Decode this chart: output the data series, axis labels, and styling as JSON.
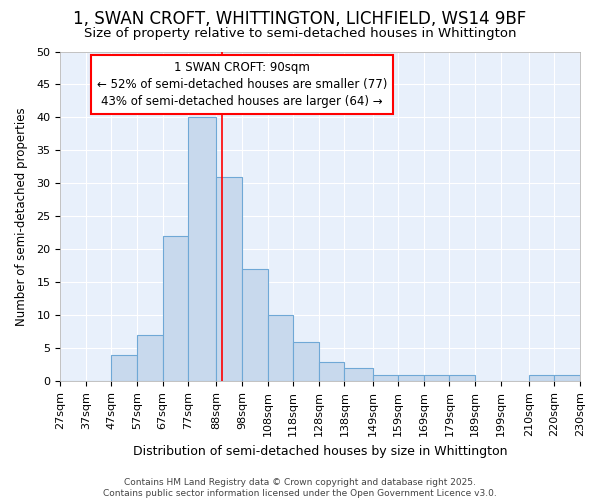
{
  "title": "1, SWAN CROFT, WHITTINGTON, LICHFIELD, WS14 9BF",
  "subtitle": "Size of property relative to semi-detached houses in Whittington",
  "xlabel": "Distribution of semi-detached houses by size in Whittington",
  "ylabel": "Number of semi-detached properties",
  "bar_left_edges": [
    27,
    37,
    47,
    57,
    67,
    77,
    88,
    98,
    108,
    118,
    128,
    138,
    149,
    159,
    169,
    179,
    189,
    199,
    210,
    220
  ],
  "bar_widths": [
    10,
    10,
    10,
    10,
    10,
    11,
    10,
    10,
    10,
    10,
    10,
    11,
    10,
    10,
    10,
    10,
    11,
    10,
    10,
    10
  ],
  "bar_heights": [
    0,
    0,
    4,
    7,
    22,
    40,
    31,
    17,
    10,
    6,
    3,
    2,
    1,
    1,
    1,
    1,
    0,
    0,
    1,
    1
  ],
  "bar_color": "#c8d9ed",
  "bar_edge_color": "#6fa8d6",
  "property_line_x": 90,
  "annotation_line1": "1 SWAN CROFT: 90sqm",
  "annotation_line2": "← 52% of semi-detached houses are smaller (77)",
  "annotation_line3": "43% of semi-detached houses are larger (64) →",
  "ylim": [
    0,
    50
  ],
  "yticks": [
    0,
    5,
    10,
    15,
    20,
    25,
    30,
    35,
    40,
    45,
    50
  ],
  "bg_color": "#ffffff",
  "plot_bg_color": "#e8f0fb",
  "grid_color": "#ffffff",
  "footer_line1": "Contains HM Land Registry data © Crown copyright and database right 2025.",
  "footer_line2": "Contains public sector information licensed under the Open Government Licence v3.0.",
  "title_fontsize": 12,
  "subtitle_fontsize": 9.5,
  "xlabel_fontsize": 9,
  "ylabel_fontsize": 8.5,
  "tick_fontsize": 8,
  "annot_fontsize": 8.5,
  "footer_fontsize": 6.5
}
